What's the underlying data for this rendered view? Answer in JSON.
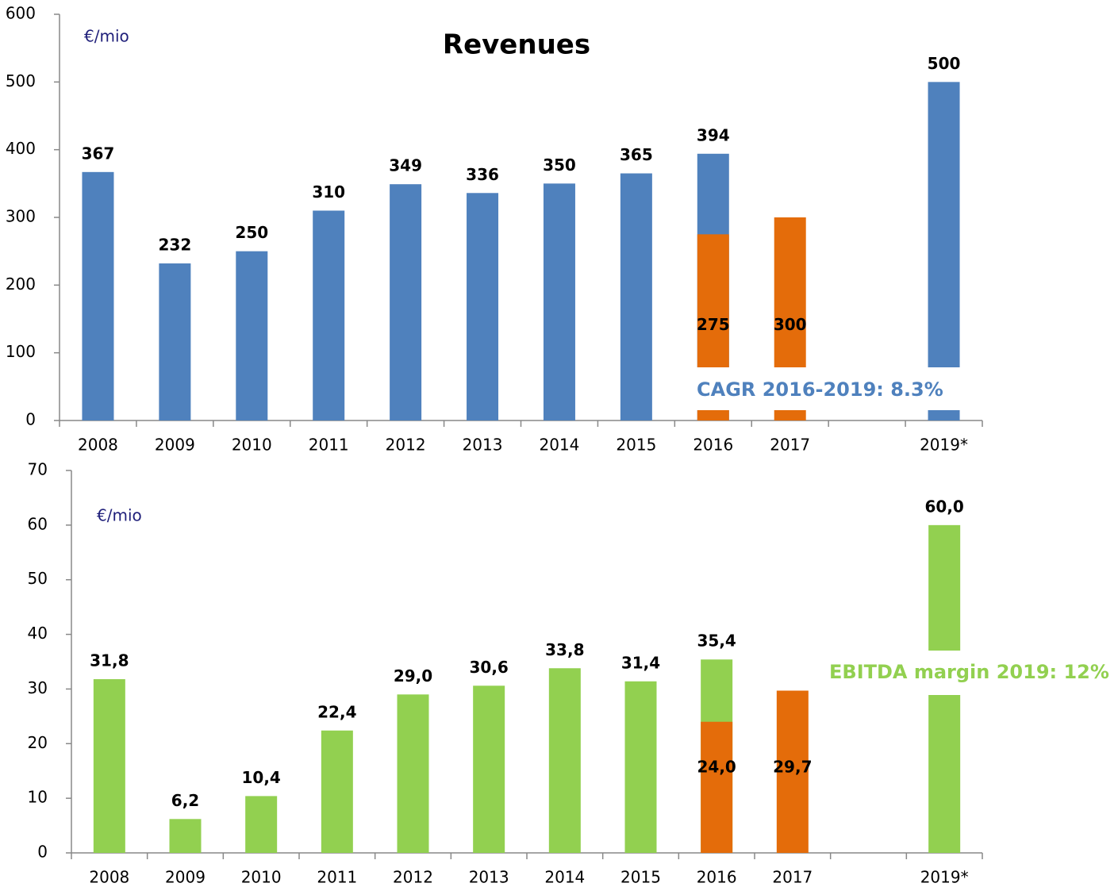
{
  "chart_data": [
    {
      "type": "bar",
      "title": "Revenues",
      "unit_label": "€/mio",
      "annotation": "CAGR 2016-2019: 8.3%",
      "annotation_color": "#4f81bd",
      "categories": [
        "2008",
        "2009",
        "2010",
        "2011",
        "2012",
        "2013",
        "2014",
        "2015",
        "2016",
        "2017",
        null,
        "2019*"
      ],
      "series": [
        {
          "color": "#4f81bd",
          "values": [
            367,
            232,
            250,
            310,
            349,
            336,
            350,
            365,
            394,
            null,
            null,
            500
          ]
        },
        {
          "color": "#e46c0a",
          "values": [
            null,
            null,
            null,
            null,
            null,
            null,
            null,
            null,
            275,
            300,
            null,
            null
          ]
        }
      ],
      "ylim": [
        0,
        600
      ],
      "yticks": [
        0,
        100,
        200,
        300,
        400,
        500,
        600
      ]
    },
    {
      "type": "bar",
      "unit_label": "€/mio",
      "annotation": "EBITDA margin 2019: 12%",
      "annotation_color": "#92d050",
      "categories": [
        "2008",
        "2009",
        "2010",
        "2011",
        "2012",
        "2013",
        "2014",
        "2015",
        "2016",
        "2017",
        null,
        "2019*"
      ],
      "series": [
        {
          "color": "#92d050",
          "values": [
            31.8,
            6.2,
            10.4,
            22.4,
            29.0,
            30.6,
            33.8,
            31.4,
            35.4,
            null,
            null,
            60.0
          ],
          "value_labels": [
            "31,8",
            "6,2",
            "10,4",
            "22,4",
            "29,0",
            "30,6",
            "33,8",
            "31,4",
            "35,4",
            null,
            null,
            "60,0"
          ]
        },
        {
          "color": "#e46c0a",
          "values": [
            null,
            null,
            null,
            null,
            null,
            null,
            null,
            null,
            24.0,
            29.7,
            null,
            null
          ],
          "value_labels": [
            null,
            null,
            null,
            null,
            null,
            null,
            null,
            null,
            "24,0",
            "29,7",
            null,
            null
          ]
        }
      ],
      "ylim": [
        0,
        70
      ],
      "yticks": [
        0,
        10,
        20,
        30,
        40,
        50,
        60,
        70
      ]
    }
  ]
}
